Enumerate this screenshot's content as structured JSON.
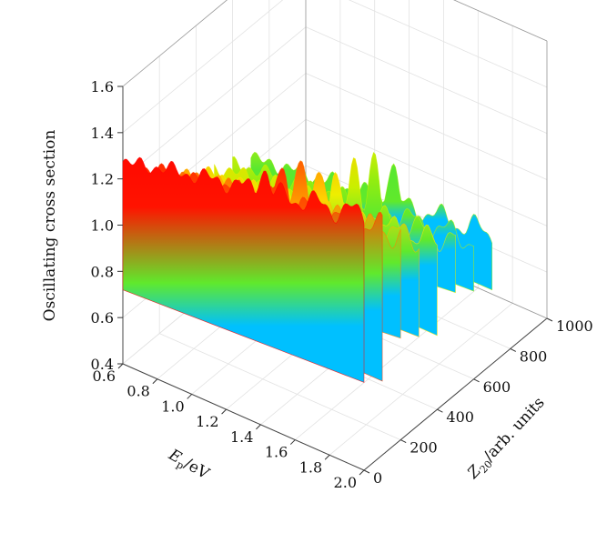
{
  "chart_data": {
    "type": "surface-3d",
    "zlabel": "Oscillating cross section",
    "xlabel_main": "E",
    "xlabel_sub": "p",
    "xlabel_unit": "/eV",
    "ylabel_main": "Z",
    "ylabel_sub": "20",
    "ylabel_unit": "/arb. units",
    "xlim": [
      0.6,
      2.0
    ],
    "ylim": [
      0,
      1000
    ],
    "zlim": [
      0.4,
      1.6
    ],
    "x_ticks": [
      "0.6",
      "0.8",
      "1.0",
      "1.2",
      "1.4",
      "1.6",
      "1.8",
      "2.0"
    ],
    "x_tick_values": [
      0.6,
      0.8,
      1.0,
      1.2,
      1.4,
      1.6,
      1.8,
      2.0
    ],
    "y_ticks": [
      "0",
      "200",
      "400",
      "600",
      "800",
      "1000"
    ],
    "y_tick_values": [
      0,
      200,
      400,
      600,
      800,
      1000
    ],
    "z_ticks": [
      "0.4",
      "0.6",
      "0.8",
      "1.0",
      "1.2",
      "1.4",
      "1.6"
    ],
    "z_tick_values": [
      0.4,
      0.6,
      0.8,
      1.0,
      1.2,
      1.4,
      1.6
    ],
    "grid": true,
    "colormap": [
      "#00c0ff",
      "#00e060",
      "#b0f000",
      "#ffee00",
      "#ffa000",
      "#ff4000",
      "#ff0000"
    ],
    "surface_ridges": [
      {
        "z": 0,
        "level_start": 1.27,
        "level_end": 1.5,
        "peak": 1.52
      },
      {
        "z": 100,
        "level_start": 1.18,
        "level_end": 1.38,
        "peak": 1.46
      },
      {
        "z": 200,
        "level_start": 1.1,
        "level_end": 1.28,
        "peak": 1.4
      },
      {
        "z": 300,
        "level_start": 1.02,
        "level_end": 1.2,
        "peak": 1.32
      },
      {
        "z": 400,
        "level_start": 0.97,
        "level_end": 1.12,
        "peak": 1.26
      },
      {
        "z": 500,
        "level_start": 0.92,
        "level_end": 1.06,
        "peak": 1.2
      },
      {
        "z": 600,
        "level_start": 0.87,
        "level_end": 1.0,
        "peak": 1.14
      },
      {
        "z": 700,
        "level_start": 0.83,
        "level_end": 0.96,
        "peak": 1.08
      }
    ],
    "surface_floor": 0.72
  }
}
